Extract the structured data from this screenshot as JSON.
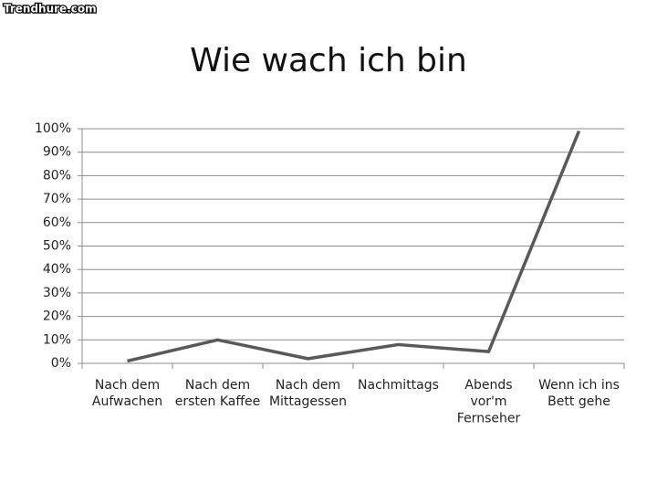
{
  "watermark": "Trendhure.com",
  "chart_data": {
    "type": "line",
    "title": "Wie wach ich bin",
    "categories": [
      "Nach dem\nAufwachen",
      "Nach dem\nersten Kaffee",
      "Nach dem\nMittagessen",
      "Nachmittags",
      "Abends\nvor'm\nFernseher",
      "Wenn ich ins\nBett gehe"
    ],
    "values": [
      1,
      10,
      2,
      8,
      5,
      99
    ],
    "color": "#595959",
    "ylim": [
      0,
      100
    ],
    "yticks": [
      {
        "value": 0,
        "label": "0%"
      },
      {
        "value": 10,
        "label": "10%"
      },
      {
        "value": 20,
        "label": "20%"
      },
      {
        "value": 30,
        "label": "30%"
      },
      {
        "value": 40,
        "label": "40%"
      },
      {
        "value": 50,
        "label": "50%"
      },
      {
        "value": 60,
        "label": "60%"
      },
      {
        "value": 70,
        "label": "70%"
      },
      {
        "value": 80,
        "label": "80%"
      },
      {
        "value": 90,
        "label": "90%"
      },
      {
        "value": 100,
        "label": "100%"
      }
    ],
    "grid": true
  }
}
